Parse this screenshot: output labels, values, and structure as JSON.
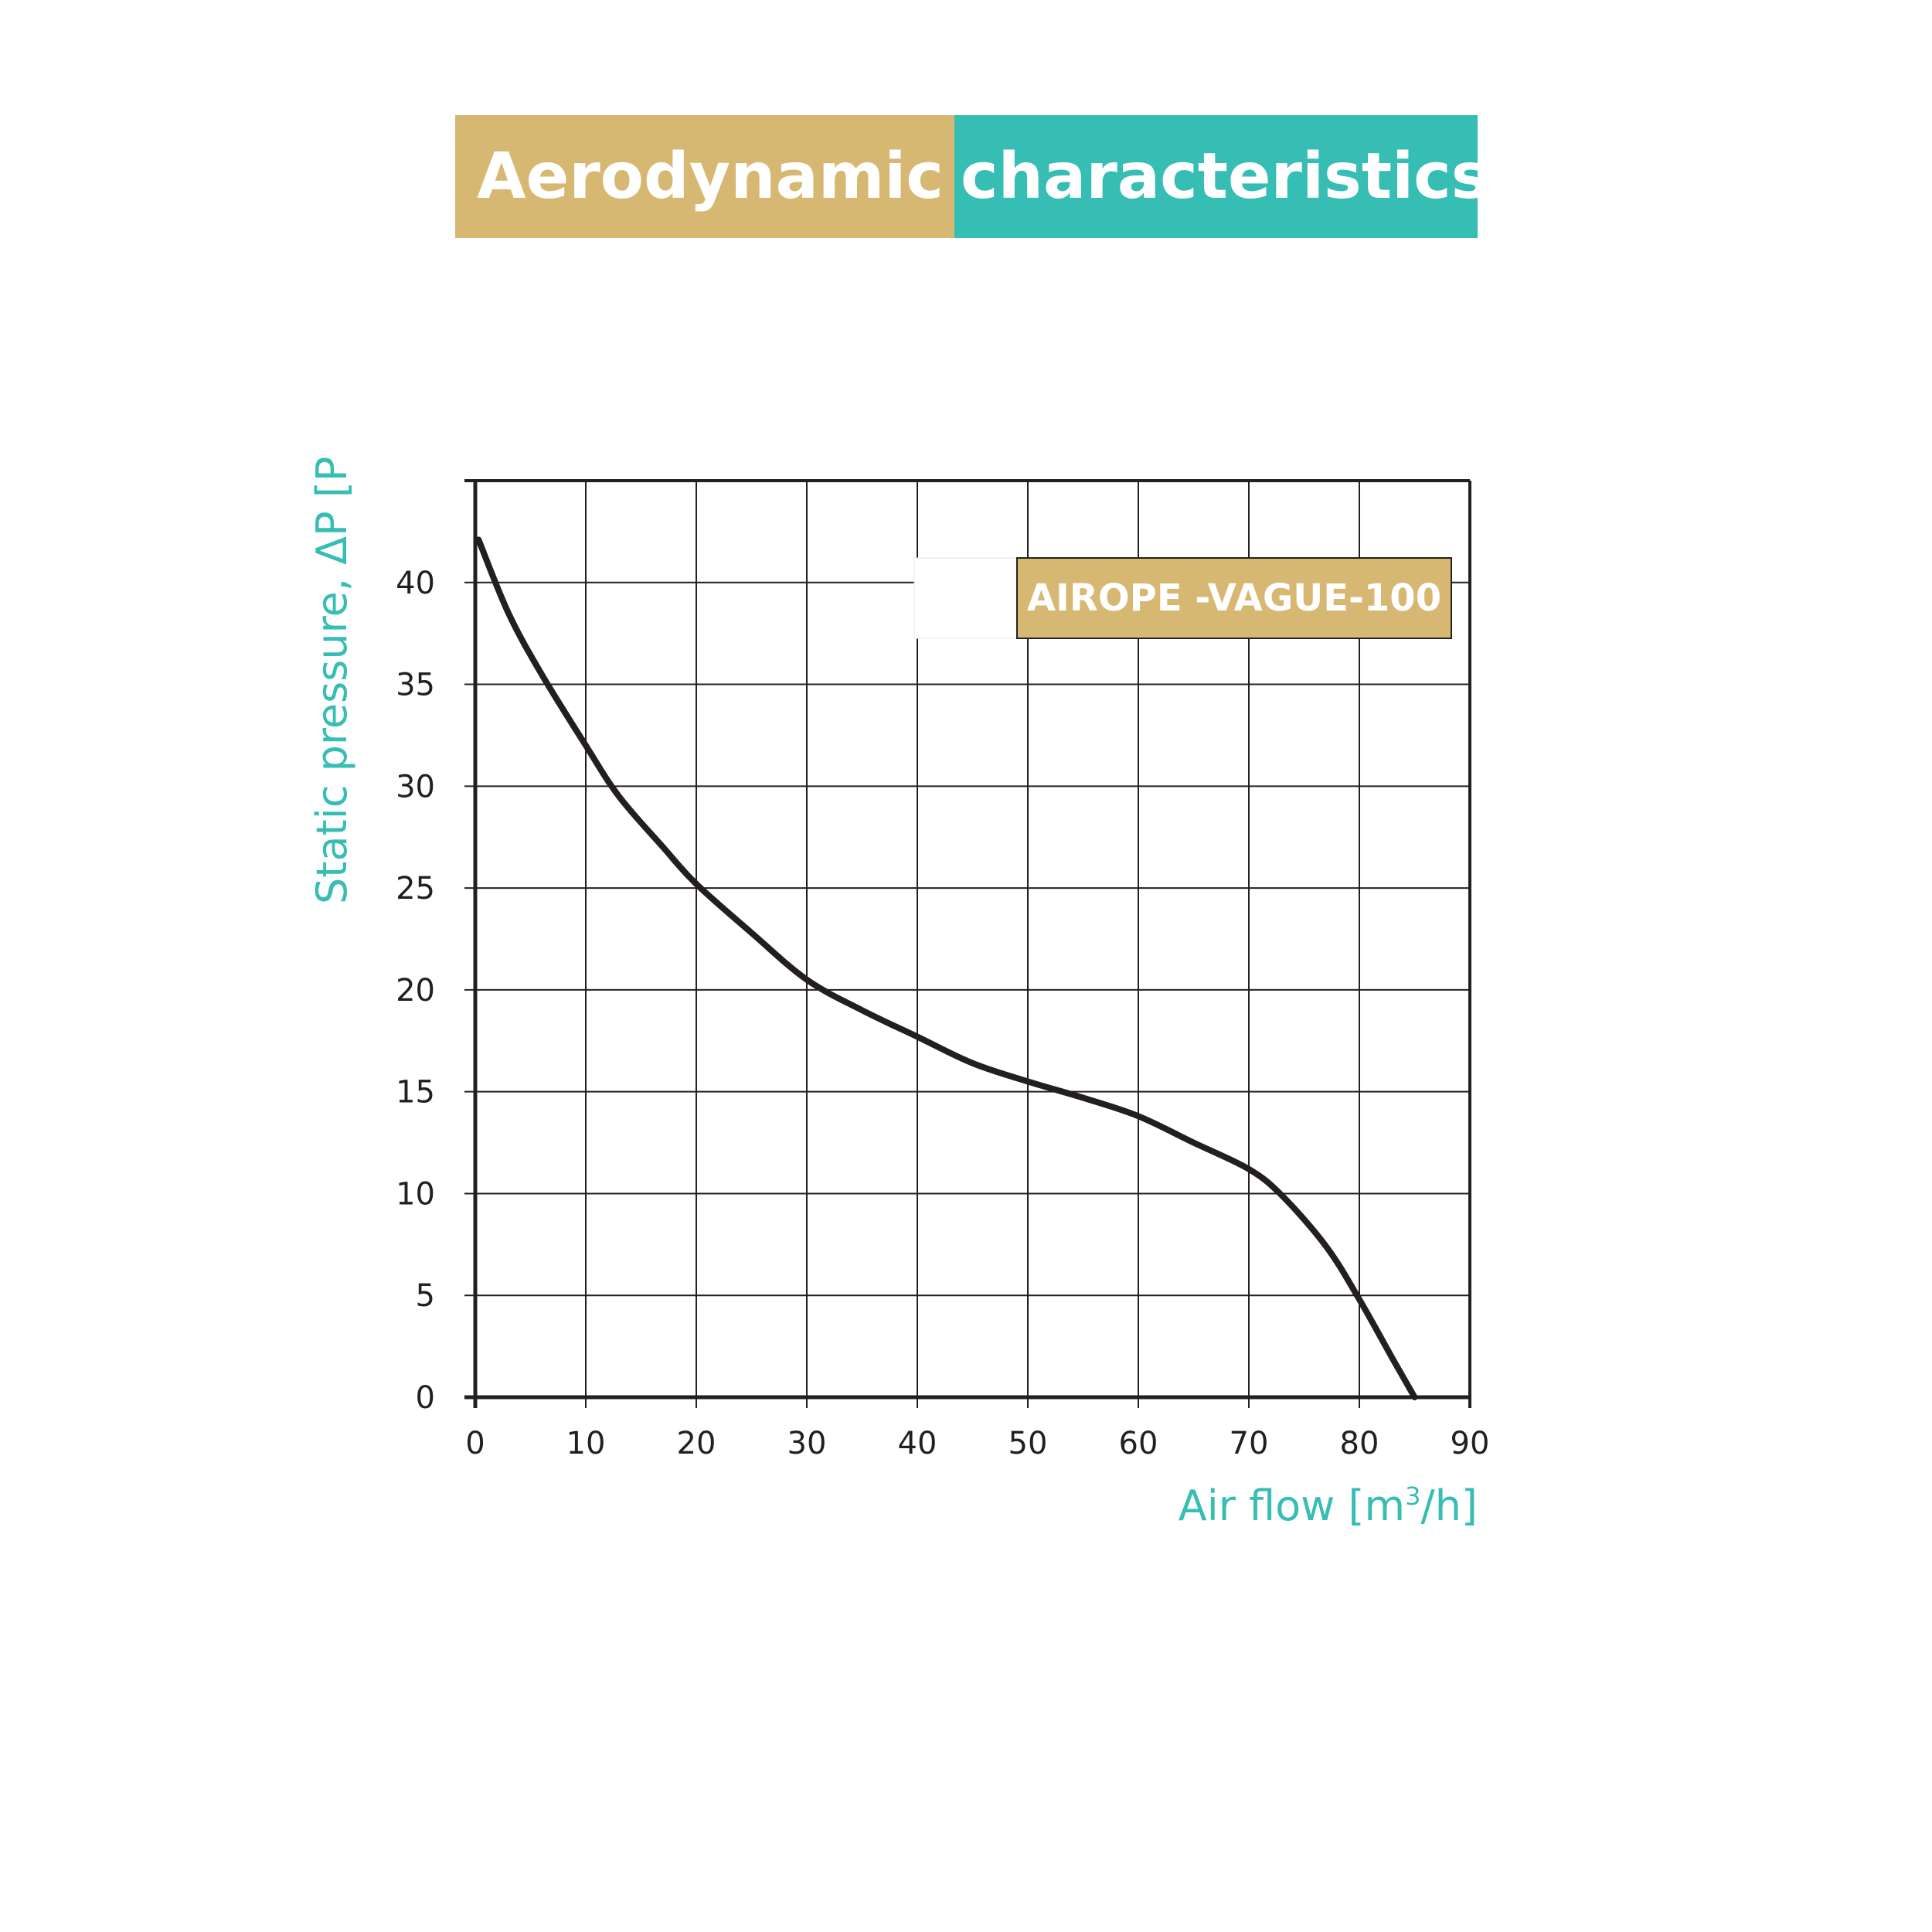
{
  "banner": {
    "left_text": "Aerodynamic",
    "right_text": "characteristics",
    "left_color": "#d6b873",
    "right_color": "#36bdb4"
  },
  "colors": {
    "curve": "#231f20",
    "grid": "#231f20",
    "axis_title": "#36bdb4",
    "legend_fill": "#d6b873",
    "legend_border": "#231f20"
  },
  "chart_data": {
    "type": "line",
    "title": "Aerodynamic characteristics",
    "xlabel_main": "Air flow [m",
    "xlabel_sup": "3",
    "xlabel_end": "/h]",
    "ylabel": "Static pressure, ΔP [P",
    "xlim": [
      0,
      90
    ],
    "ylim": [
      0,
      45
    ],
    "x_ticks": [
      0,
      10,
      20,
      30,
      40,
      50,
      60,
      70,
      80,
      90
    ],
    "y_ticks": [
      0,
      5,
      10,
      15,
      20,
      25,
      30,
      35,
      40
    ],
    "x_tick_labels": [
      "0",
      "10",
      "20",
      "30",
      "40",
      "50",
      "60",
      "70",
      "80",
      "90"
    ],
    "y_tick_labels": [
      "0",
      "5",
      "10",
      "15",
      "20",
      "25",
      "30",
      "35",
      "40"
    ],
    "grid": true,
    "legend_position": "top-right",
    "series": [
      {
        "name": "AIROPE -VAGUE-100",
        "x": [
          0.3,
          3,
          6,
          10,
          13,
          17,
          20,
          25,
          30,
          35,
          40,
          45,
          50,
          55,
          60,
          65,
          70,
          73,
          77,
          80,
          83,
          85
        ],
        "y": [
          42.1,
          38.5,
          35.5,
          32.0,
          29.5,
          27,
          25.2,
          22.8,
          20.5,
          19.0,
          17.7,
          16.4,
          15.5,
          14.7,
          13.8,
          12.5,
          11.2,
          9.9,
          7.4,
          4.8,
          1.9,
          0
        ]
      }
    ]
  }
}
